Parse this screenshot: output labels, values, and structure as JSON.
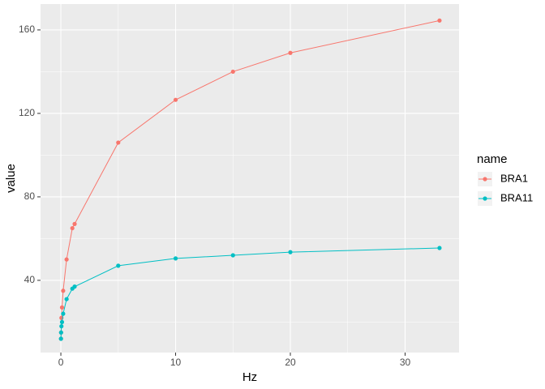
{
  "chart_data": {
    "type": "line",
    "x_label": "Hz",
    "y_label": "value",
    "legend_title": "name",
    "legend_position": "right",
    "x": [
      0.01,
      0.02,
      0.05,
      0.1,
      0.2,
      0.5,
      1,
      1.2,
      5,
      10,
      15,
      20,
      33
    ],
    "series": [
      {
        "name": "BRA1",
        "color": "#F8766D",
        "values": [
          12,
          15,
          22,
          27,
          35,
          50,
          65,
          67,
          106,
          126.5,
          140,
          149,
          164.5
        ]
      },
      {
        "name": "BRA11",
        "color": "#00BFC4",
        "values": [
          12,
          15,
          18,
          20,
          24,
          31,
          36,
          37,
          47,
          50.5,
          52,
          53.5,
          55.5
        ]
      }
    ],
    "xlim": [
      -1.77,
      34.7
    ],
    "xticks": [
      0,
      10,
      20,
      30
    ],
    "ylim": [
      5.4,
      172.4
    ],
    "yticks": [
      40,
      80,
      120,
      160
    ],
    "grid": true
  }
}
